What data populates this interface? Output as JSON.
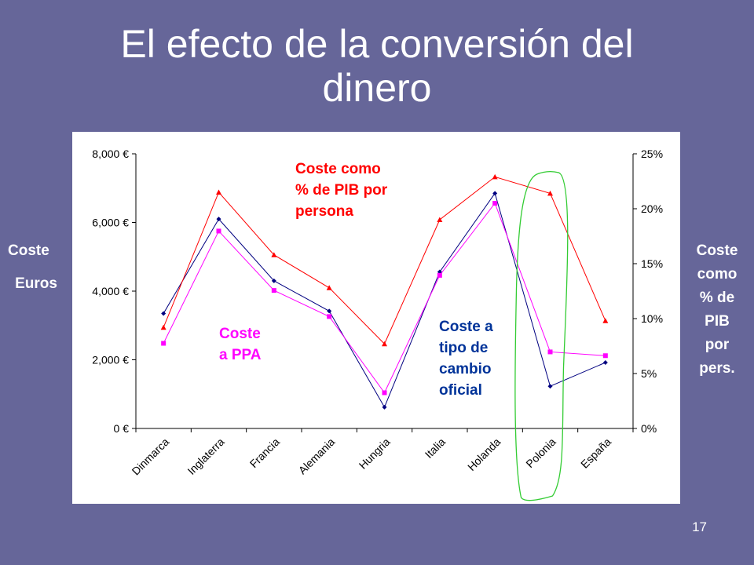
{
  "slide": {
    "title_line1": "El efecto de la conversión del",
    "title_line2": "dinero",
    "page_number": "17"
  },
  "side_labels": {
    "left_line1": "Coste",
    "left_line2": "Euros",
    "right_lines": [
      "Coste",
      "como",
      "% de",
      "PIB",
      "por",
      "pers."
    ]
  },
  "chart_data": {
    "type": "line",
    "categories": [
      "Dinmarca",
      "Inglaterra",
      "Francia",
      "Alemania",
      "Hungria",
      "Italia",
      "Holanda",
      "Polonia",
      "España"
    ],
    "left_axis": {
      "ylim": [
        0,
        8000
      ],
      "ticks": [
        0,
        2000,
        4000,
        6000,
        8000
      ],
      "tick_labels": [
        "0 €",
        "2,000 €",
        "4,000 €",
        "6,000 €",
        "8,000 €"
      ]
    },
    "right_axis": {
      "ylim": [
        0,
        25
      ],
      "ticks": [
        0,
        5,
        10,
        15,
        20,
        25
      ],
      "tick_labels": [
        "0%",
        "5%",
        "10%",
        "15%",
        "20%",
        "25%"
      ]
    },
    "grid": false,
    "series": [
      {
        "name": "Coste a tipo de cambio oficial",
        "axis": "left",
        "color": "#000080",
        "marker": "diamond",
        "values": [
          3350,
          6100,
          4300,
          3420,
          620,
          4560,
          6850,
          1230,
          1920
        ]
      },
      {
        "name": "Coste a PPA",
        "axis": "left",
        "color": "#ff00ff",
        "marker": "square",
        "values": [
          2480,
          5750,
          4020,
          3260,
          1040,
          4460,
          6560,
          2230,
          2120
        ]
      },
      {
        "name": "Coste como % de PIB por persona",
        "axis": "right",
        "color": "#ff0000",
        "marker": "triangle",
        "values": [
          9.2,
          21.5,
          15.8,
          12.8,
          7.7,
          19.0,
          22.9,
          21.4,
          9.8
        ]
      }
    ],
    "annotations": {
      "red": [
        "Coste como",
        "% de PIB por",
        "persona"
      ],
      "pink": [
        "Coste",
        "a  PPA"
      ],
      "blue": [
        "Coste a",
        "tipo de",
        "cambio",
        "oficial"
      ]
    },
    "highlight": {
      "category": "Polonia",
      "color": "#33cc33"
    }
  }
}
